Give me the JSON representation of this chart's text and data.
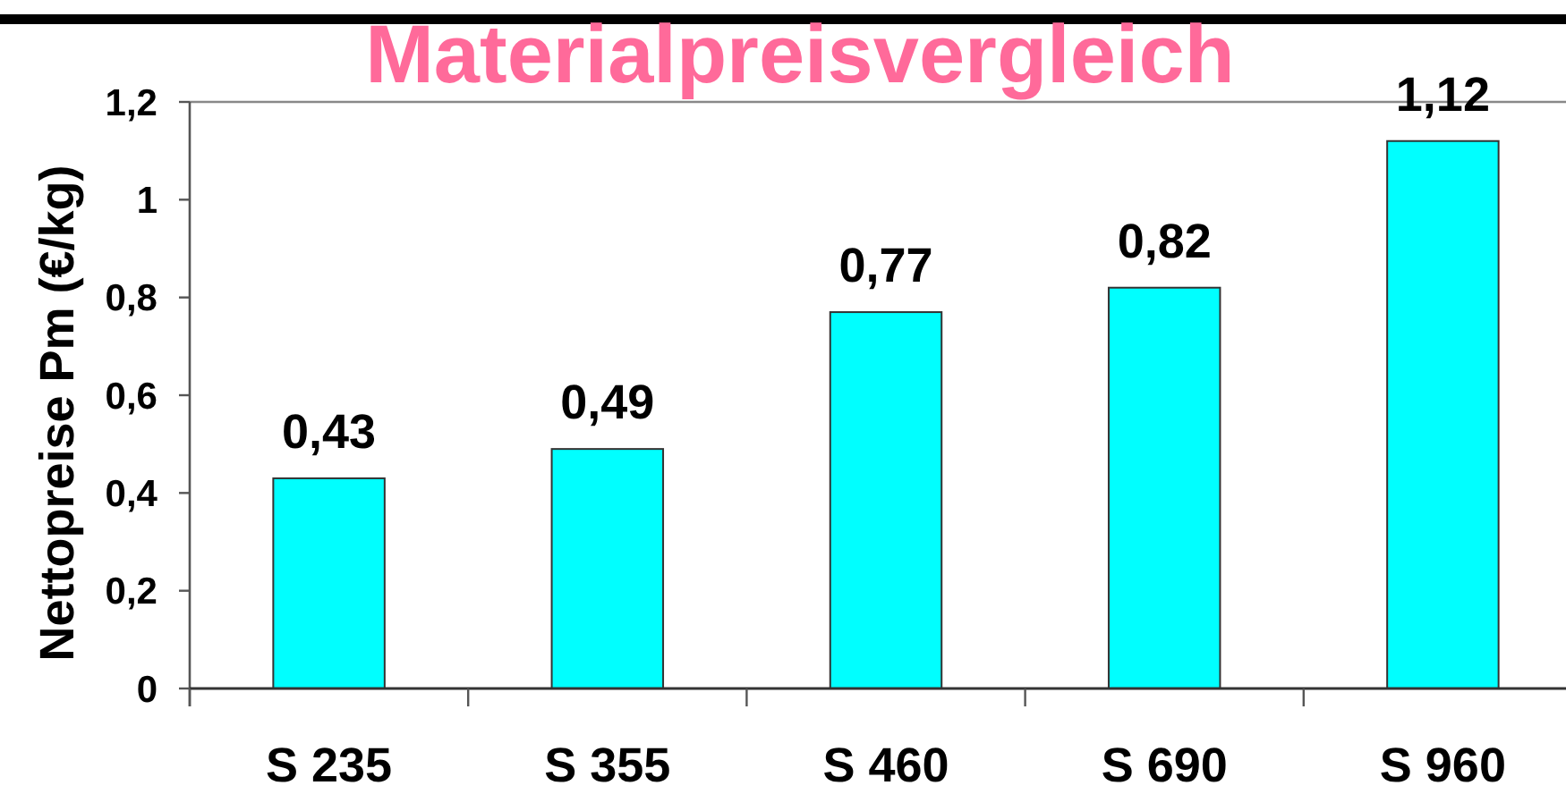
{
  "chart_data": {
    "type": "bar",
    "title": "Materialpreisvergleich",
    "ylabel": "Nettopreise Pm (€/kg)",
    "categories": [
      "S 235",
      "S 355",
      "S 460",
      "S 690",
      "S 960"
    ],
    "values": [
      0.43,
      0.49,
      0.77,
      0.82,
      1.12
    ],
    "value_labels": [
      "0,43",
      "0,49",
      "0,77",
      "0,82",
      "1,12"
    ],
    "color": "#00ffff",
    "ylim": [
      0,
      1.2
    ],
    "yticks": [
      0,
      {
        "value": 0.2,
        "label": "0,2"
      },
      {
        "value": 0.4,
        "label": "0,4"
      },
      {
        "value": 0.6,
        "label": "0,6"
      },
      {
        "value": 0.8,
        "label": "0,8"
      },
      1,
      {
        "value": 1.2,
        "label": "1,2"
      }
    ]
  }
}
